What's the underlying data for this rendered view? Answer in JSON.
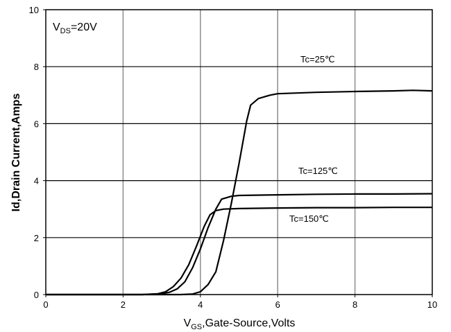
{
  "chart_data": {
    "type": "line",
    "xlabel": {
      "main": "V",
      "sub": "GS",
      "rest": ",Gate-Source,Volts"
    },
    "ylabel": "Id,Drain Current,Amps",
    "annotation": {
      "main": "V",
      "sub": "DS",
      "rest": "=20V"
    },
    "xlim": [
      0,
      10
    ],
    "ylim": [
      0,
      10
    ],
    "xticks": [
      0,
      2,
      4,
      6,
      8,
      10
    ],
    "yticks": [
      0,
      2,
      4,
      6,
      8,
      10
    ],
    "grid": true,
    "series": [
      {
        "name": "Tc=25℃",
        "x": [
          0,
          2.5,
          3.5,
          3.8,
          4.0,
          4.2,
          4.4,
          4.6,
          4.8,
          5.0,
          5.2,
          5.3,
          5.5,
          5.8,
          6.0,
          7.0,
          8.0,
          9.0,
          9.5,
          10.0
        ],
        "y": [
          0,
          0,
          0,
          0.02,
          0.1,
          0.35,
          0.8,
          1.9,
          3.2,
          4.6,
          6.1,
          6.65,
          6.88,
          7.0,
          7.05,
          7.1,
          7.13,
          7.15,
          7.17,
          7.15
        ]
      },
      {
        "name": "Tc=125℃",
        "x": [
          0,
          2.5,
          3.0,
          3.2,
          3.4,
          3.6,
          3.8,
          4.0,
          4.2,
          4.4,
          4.55,
          4.8,
          5.0,
          6.0,
          7.0,
          8.0,
          9.0,
          10.0
        ],
        "y": [
          0,
          0,
          0.03,
          0.08,
          0.2,
          0.45,
          0.95,
          1.6,
          2.35,
          3.0,
          3.35,
          3.45,
          3.48,
          3.5,
          3.52,
          3.53,
          3.53,
          3.54
        ]
      },
      {
        "name": "Tc=150℃",
        "x": [
          0,
          2.5,
          2.9,
          3.1,
          3.3,
          3.5,
          3.7,
          3.9,
          4.1,
          4.25,
          4.4,
          4.6,
          5.0,
          6.0,
          7.0,
          8.0,
          9.0,
          10.0
        ],
        "y": [
          0,
          0,
          0.03,
          0.1,
          0.28,
          0.58,
          1.05,
          1.7,
          2.4,
          2.8,
          2.95,
          3.0,
          3.02,
          3.04,
          3.05,
          3.05,
          3.06,
          3.06
        ]
      }
    ]
  }
}
